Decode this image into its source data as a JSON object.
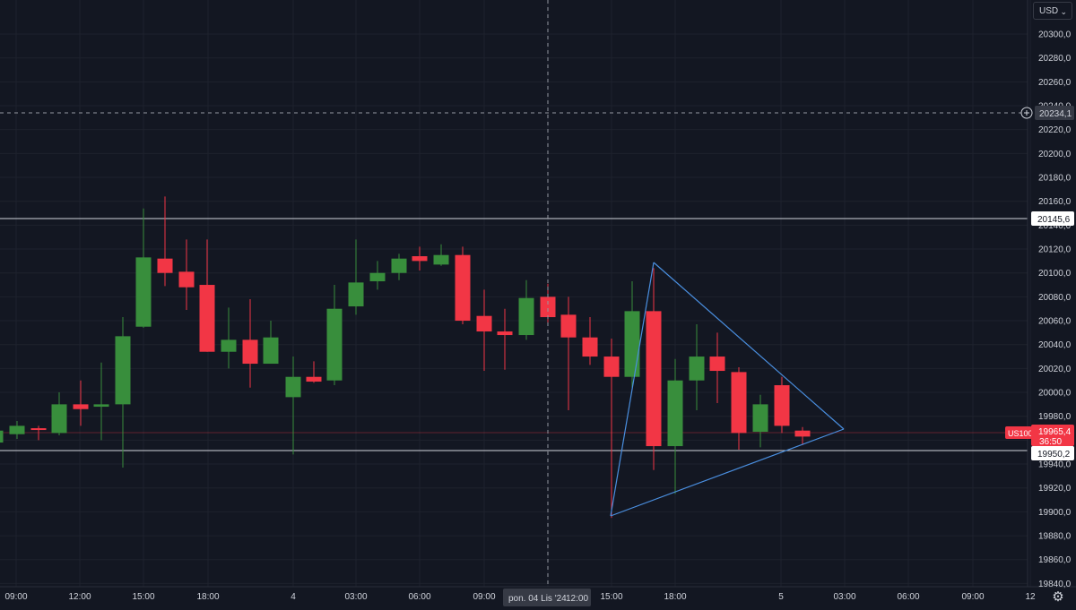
{
  "currency": "USD",
  "settings_icon": "gear-icon",
  "colors": {
    "background": "#131722",
    "up": "#26a69a",
    "up_fill": "#388e3c",
    "down": "#f23645",
    "trendline": "#4a8fe0",
    "hline": "#d1d4dc"
  },
  "y_axis_labels": [
    "20300,0",
    "20280,0",
    "20260,0",
    "20240,0",
    "20220,0",
    "20200,0",
    "20180,0",
    "20160,0",
    "20140,0",
    "20120,0",
    "20100,0",
    "20080,0",
    "20060,0",
    "20040,0",
    "20020,0",
    "20000,0",
    "19980,0",
    "19960,0",
    "19940,0",
    "19920,0",
    "19900,0",
    "19880,0",
    "19860,0",
    "19840,0"
  ],
  "x_axis_labels": [
    "09:00",
    "12:00",
    "15:00",
    "18:00",
    "4",
    "03:00",
    "06:00",
    "09:00",
    "12:00",
    "15:00",
    "18:00",
    "5",
    "03:00",
    "06:00",
    "09:00",
    "12"
  ],
  "crosshair": {
    "price_label": "20234,1",
    "time_label": "pon. 04 Lis '24",
    "time_suffix": "12:00"
  },
  "levels": {
    "resistance": "20145,6",
    "support": "19950,2"
  },
  "symbol": {
    "name": "US100",
    "price": "19965,4",
    "countdown": "36:50"
  },
  "chart_data": {
    "type": "candlestick",
    "symbol": "US100",
    "interval_hours": 1,
    "ylim": [
      19820,
      20320
    ],
    "candles": [
      {
        "time": "3 Nov 07:00",
        "o": 19958,
        "h": 19972,
        "l": 19950,
        "c": 19968
      },
      {
        "time": "3 Nov 08:00",
        "o": 19965,
        "h": 19976,
        "l": 19961,
        "c": 19972
      },
      {
        "time": "3 Nov 09:00",
        "o": 19970,
        "h": 19972,
        "l": 19960,
        "c": 19969
      },
      {
        "time": "3 Nov 10:00",
        "o": 19966,
        "h": 20000,
        "l": 19964,
        "c": 19990
      },
      {
        "time": "3 Nov 11:00",
        "o": 19990,
        "h": 20010,
        "l": 19972,
        "c": 19986
      },
      {
        "time": "3 Nov 12:00",
        "o": 19988,
        "h": 20025,
        "l": 19960,
        "c": 19990
      },
      {
        "time": "3 Nov 13:00",
        "o": 19990,
        "h": 20063,
        "l": 19937,
        "c": 20047
      },
      {
        "time": "3 Nov 14:00",
        "o": 20055,
        "h": 20154,
        "l": 20054,
        "c": 20113
      },
      {
        "time": "3 Nov 15:00",
        "o": 20112,
        "h": 20164,
        "l": 20089,
        "c": 20100
      },
      {
        "time": "3 Nov 16:00",
        "o": 20101,
        "h": 20128,
        "l": 20069,
        "c": 20088
      },
      {
        "time": "3 Nov 17:00",
        "o": 20090,
        "h": 20128,
        "l": 20034,
        "c": 20034
      },
      {
        "time": "3 Nov 18:00",
        "o": 20034,
        "h": 20071,
        "l": 20020,
        "c": 20044
      },
      {
        "time": "3 Nov 19:00",
        "o": 20044,
        "h": 20078,
        "l": 20004,
        "c": 20024
      },
      {
        "time": "3 Nov 20:00",
        "o": 20024,
        "h": 20060,
        "l": 20024,
        "c": 20046
      },
      {
        "time": "3 Nov 23:00",
        "o": 19996,
        "h": 20030,
        "l": 19948,
        "c": 20013
      },
      {
        "time": "4 Nov 00:00",
        "o": 20013,
        "h": 20026,
        "l": 20008,
        "c": 20009
      },
      {
        "time": "4 Nov 01:00",
        "o": 20010,
        "h": 20090,
        "l": 20006,
        "c": 20070
      },
      {
        "time": "4 Nov 02:00",
        "o": 20072,
        "h": 20128,
        "l": 20065,
        "c": 20092
      },
      {
        "time": "4 Nov 03:00",
        "o": 20093,
        "h": 20110,
        "l": 20086,
        "c": 20100
      },
      {
        "time": "4 Nov 04:00",
        "o": 20100,
        "h": 20116,
        "l": 20094,
        "c": 20112
      },
      {
        "time": "4 Nov 05:00",
        "o": 20114,
        "h": 20122,
        "l": 20102,
        "c": 20110
      },
      {
        "time": "4 Nov 06:00",
        "o": 20107,
        "h": 20124,
        "l": 20106,
        "c": 20115
      },
      {
        "time": "4 Nov 07:00",
        "o": 20115,
        "h": 20122,
        "l": 20057,
        "c": 20060
      },
      {
        "time": "4 Nov 08:00",
        "o": 20064,
        "h": 20086,
        "l": 20018,
        "c": 20051
      },
      {
        "time": "4 Nov 09:00",
        "o": 20051,
        "h": 20070,
        "l": 20019,
        "c": 20048
      },
      {
        "time": "4 Nov 10:00",
        "o": 20048,
        "h": 20094,
        "l": 20044,
        "c": 20079
      },
      {
        "time": "4 Nov 11:00",
        "o": 20080,
        "h": 20091,
        "l": 20058,
        "c": 20063
      },
      {
        "time": "4 Nov 12:00",
        "o": 20065,
        "h": 20080,
        "l": 19985,
        "c": 20046
      },
      {
        "time": "4 Nov 13:00",
        "o": 20046,
        "h": 20063,
        "l": 20023,
        "c": 20030
      },
      {
        "time": "4 Nov 14:00",
        "o": 20030,
        "h": 20045,
        "l": 19895,
        "c": 20013
      },
      {
        "time": "4 Nov 15:00",
        "o": 20013,
        "h": 20093,
        "l": 20004,
        "c": 20068
      },
      {
        "time": "4 Nov 16:00",
        "o": 20068,
        "h": 20104,
        "l": 19935,
        "c": 19955
      },
      {
        "time": "4 Nov 17:00",
        "o": 19955,
        "h": 20028,
        "l": 19915,
        "c": 20010
      },
      {
        "time": "4 Nov 18:00",
        "o": 20010,
        "h": 20057,
        "l": 19985,
        "c": 20030
      },
      {
        "time": "4 Nov 19:00",
        "o": 20030,
        "h": 20050,
        "l": 19991,
        "c": 20018
      },
      {
        "time": "4 Nov 20:00",
        "o": 20017,
        "h": 20021,
        "l": 19952,
        "c": 19966
      },
      {
        "time": "4 Nov 21:00",
        "o": 19967,
        "h": 19998,
        "l": 19954,
        "c": 19990
      },
      {
        "time": "4 Nov 22:00",
        "o": 20006,
        "h": 20013,
        "l": 19966,
        "c": 19972
      },
      {
        "time": "4 Nov 23:00",
        "o": 19968,
        "h": 19971,
        "l": 19956,
        "c": 19963
      }
    ],
    "horizontal_lines": [
      20145.6,
      19950.2
    ],
    "triangle": {
      "top": {
        "time": "4 Nov 16:00",
        "price": 20108
      },
      "bottom": {
        "time": "4 Nov 14:00",
        "price": 19895
      },
      "apex": {
        "time": "5 Nov 03:00",
        "price": 19966
      }
    },
    "crosshair": {
      "time": "4 Nov 12:00",
      "price": 20234.1
    }
  }
}
